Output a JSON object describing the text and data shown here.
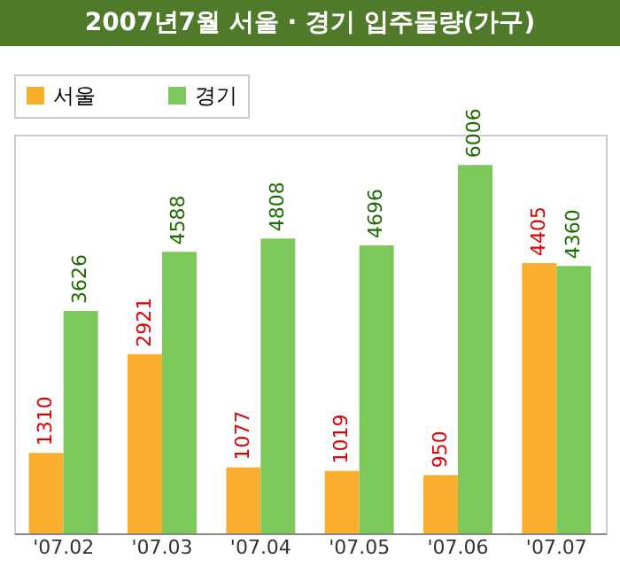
{
  "chart_data": {
    "type": "bar",
    "title": "2007년7월 서울 · 경기 입주물량(가구)",
    "categories": [
      "'07.02",
      "'07.03",
      "'07.04",
      "'07.05",
      "'07.06",
      "'07.07"
    ],
    "series": [
      {
        "name": "서울",
        "color": "#f9ae2e",
        "values": [
          1310,
          2921,
          1077,
          1019,
          950,
          4405
        ]
      },
      {
        "name": "경기",
        "color": "#7dc85a",
        "values": [
          3626,
          4588,
          4808,
          4696,
          6006,
          4360
        ]
      }
    ],
    "data_labels": true,
    "legend": "top left",
    "grid": false
  }
}
